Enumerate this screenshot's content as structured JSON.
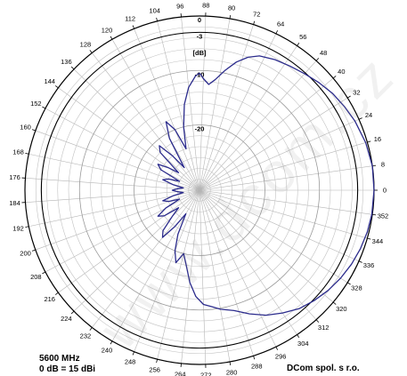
{
  "chart_data": {
    "type": "polar-line",
    "frequency_label": "5600 MHz",
    "gain_label": "0 dB = 15 dBi",
    "company_label": "DCom spol. s r.o.",
    "unit_label": "[dB]",
    "ring_labels": [
      {
        "db": 0,
        "text": "0"
      },
      {
        "db": -3,
        "text": "-3"
      },
      {
        "db": -10,
        "text": "-10"
      },
      {
        "db": -20,
        "text": "-20"
      }
    ],
    "db_min": -32,
    "angle_ticks": [
      0,
      8,
      16,
      24,
      32,
      40,
      48,
      56,
      64,
      72,
      80,
      88,
      96,
      104,
      112,
      120,
      128,
      136,
      144,
      152,
      160,
      168,
      176,
      184,
      192,
      200,
      208,
      216,
      224,
      232,
      240,
      248,
      256,
      264,
      272,
      280,
      288,
      296,
      304,
      312,
      320,
      328,
      336,
      344,
      352
    ],
    "angle_tick_labels": [
      "0",
      "8",
      "16",
      "24",
      "32",
      "40",
      "48",
      "56",
      "64",
      "72",
      "80",
      "88",
      "96",
      "104",
      "112",
      "120",
      "128",
      "136",
      "144",
      "152",
      "160",
      "168",
      "176",
      "184",
      "192",
      "200",
      "208",
      "216",
      "224",
      "232",
      "240",
      "248",
      "256",
      "264",
      "272",
      "280",
      "288",
      "296",
      "304",
      "312",
      "320",
      "328",
      "336",
      "344",
      "352"
    ],
    "series": [
      {
        "color": "#2b2b8c",
        "points": [
          [
            0,
            0
          ],
          [
            8,
            0
          ],
          [
            16,
            -0.3
          ],
          [
            24,
            -0.8
          ],
          [
            30,
            -1.3
          ],
          [
            36,
            -1.8
          ],
          [
            42,
            -2.5
          ],
          [
            48,
            -3.2
          ],
          [
            54,
            -3.8
          ],
          [
            60,
            -4.3
          ],
          [
            66,
            -5.0
          ],
          [
            70,
            -6.0
          ],
          [
            74,
            -7.5
          ],
          [
            78,
            -9.5
          ],
          [
            82,
            -11.5
          ],
          [
            85,
            -12.5
          ],
          [
            88,
            -11.5
          ],
          [
            90,
            -10.5
          ],
          [
            92,
            -11
          ],
          [
            96,
            -13
          ],
          [
            100,
            -16
          ],
          [
            104,
            -20
          ],
          [
            108,
            -24
          ],
          [
            112,
            -20
          ],
          [
            116,
            -18
          ],
          [
            120,
            -21
          ],
          [
            124,
            -27
          ],
          [
            128,
            -24
          ],
          [
            132,
            -21
          ],
          [
            136,
            -22
          ],
          [
            140,
            -27
          ],
          [
            144,
            -25
          ],
          [
            148,
            -23
          ],
          [
            152,
            -24
          ],
          [
            156,
            -28
          ],
          [
            160,
            -26
          ],
          [
            164,
            -25
          ],
          [
            168,
            -27
          ],
          [
            172,
            -29
          ],
          [
            176,
            -28
          ],
          [
            180,
            -27
          ],
          [
            184,
            -28
          ],
          [
            188,
            -29
          ],
          [
            192,
            -27
          ],
          [
            196,
            -25
          ],
          [
            200,
            -26
          ],
          [
            204,
            -28
          ],
          [
            208,
            -25
          ],
          [
            212,
            -23
          ],
          [
            216,
            -24
          ],
          [
            220,
            -27
          ],
          [
            224,
            -25
          ],
          [
            228,
            -22
          ],
          [
            232,
            -21
          ],
          [
            236,
            -24
          ],
          [
            240,
            -27
          ],
          [
            244,
            -23
          ],
          [
            248,
            -20
          ],
          [
            252,
            -18
          ],
          [
            256,
            -20
          ],
          [
            260,
            -18
          ],
          [
            264,
            -15
          ],
          [
            268,
            -12.5
          ],
          [
            272,
            -11
          ],
          [
            276,
            -10.5
          ],
          [
            280,
            -9.8
          ],
          [
            286,
            -9
          ],
          [
            292,
            -7.5
          ],
          [
            298,
            -6
          ],
          [
            304,
            -4.8
          ],
          [
            310,
            -3.6
          ],
          [
            316,
            -2.8
          ],
          [
            322,
            -2.1
          ],
          [
            328,
            -1.5
          ],
          [
            334,
            -1.0
          ],
          [
            340,
            -0.6
          ],
          [
            346,
            -0.3
          ],
          [
            352,
            -0.1
          ],
          [
            360,
            0
          ]
        ]
      }
    ]
  }
}
